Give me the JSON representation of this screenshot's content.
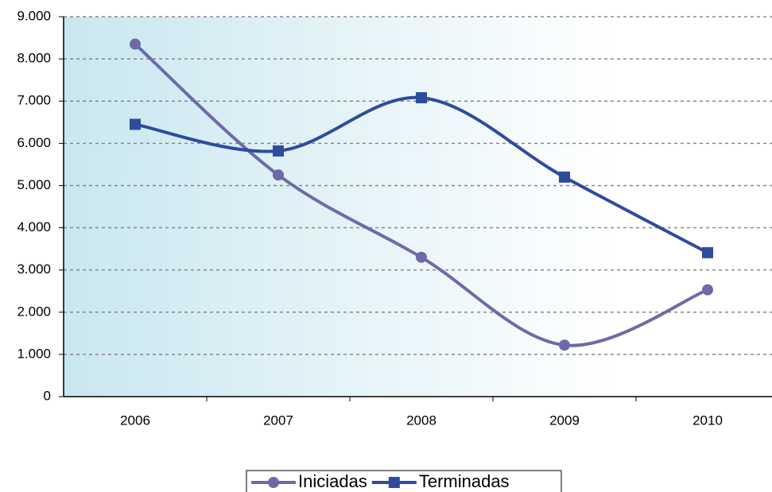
{
  "chart_data": {
    "type": "line",
    "categories": [
      "2006",
      "2007",
      "2008",
      "2009",
      "2010"
    ],
    "series": [
      {
        "name": "Iniciadas",
        "color": "#6e6aa8",
        "marker": "circle",
        "values": [
          8350,
          5250,
          3300,
          1220,
          2530
        ]
      },
      {
        "name": "Terminadas",
        "color": "#2f4b9e",
        "marker": "square",
        "values": [
          6450,
          5820,
          7080,
          5200,
          3410
        ]
      }
    ],
    "ylim": [
      0,
      9000
    ],
    "yticks": [
      0,
      {
        "value": 1000,
        "label": "1.000"
      },
      {
        "value": 2000,
        "label": "2.000"
      },
      {
        "value": 3000,
        "label": "3.000"
      },
      {
        "value": 4000,
        "label": "4.000"
      },
      {
        "value": 5000,
        "label": "5.000"
      },
      {
        "value": 6000,
        "label": "6.000"
      },
      {
        "value": 7000,
        "label": "7.000"
      },
      {
        "value": 8000,
        "label": "8.000"
      },
      {
        "value": 9000,
        "label": "9.000"
      }
    ],
    "grid": true,
    "smooth": true,
    "legend": "bottom"
  }
}
